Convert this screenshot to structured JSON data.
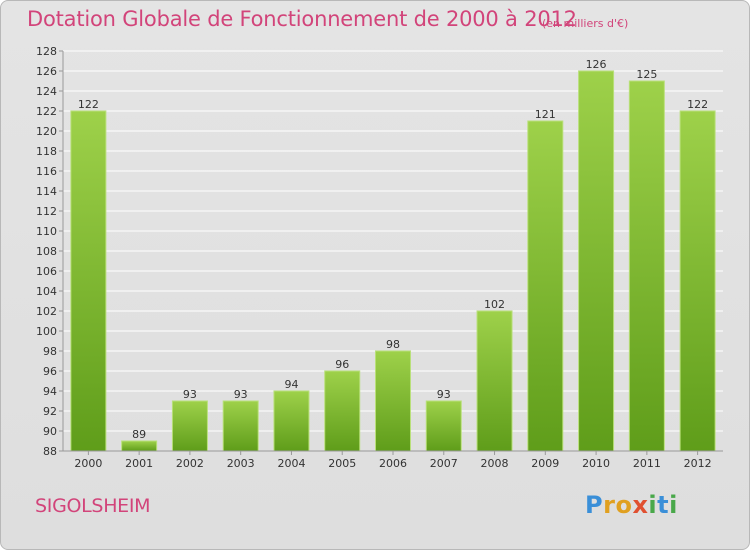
{
  "title": "Dotation Globale de Fonctionnement de 2000 à 2012",
  "subtitle": "(en milliers d'€)",
  "town": "SIGOLSHEIM",
  "logo": {
    "letters": [
      "P",
      "r",
      "o",
      "x",
      "i",
      "t",
      "i"
    ],
    "colors": [
      "#3a8fd8",
      "#e0a020",
      "#e0a020",
      "#e05030",
      "#49a84a",
      "#3a8fd8",
      "#49a84a"
    ]
  },
  "colors": {
    "bar_light": "#9ed14a",
    "bar_dark": "#5f9d1a",
    "title": "#d2447a",
    "grid": "#ffffff",
    "axis": "#999999"
  },
  "chart_data": {
    "type": "bar",
    "categories": [
      "2000",
      "2001",
      "2002",
      "2003",
      "2004",
      "2005",
      "2006",
      "2007",
      "2008",
      "2009",
      "2010",
      "2011",
      "2012"
    ],
    "values": [
      122,
      89,
      93,
      93,
      94,
      96,
      98,
      93,
      102,
      121,
      126,
      125,
      122
    ],
    "ylim": [
      88,
      128
    ],
    "yticks": [
      88,
      90,
      92,
      94,
      96,
      98,
      100,
      102,
      104,
      106,
      108,
      110,
      112,
      114,
      116,
      118,
      120,
      122,
      124,
      126,
      128
    ],
    "grid": true,
    "data_labels": true
  }
}
